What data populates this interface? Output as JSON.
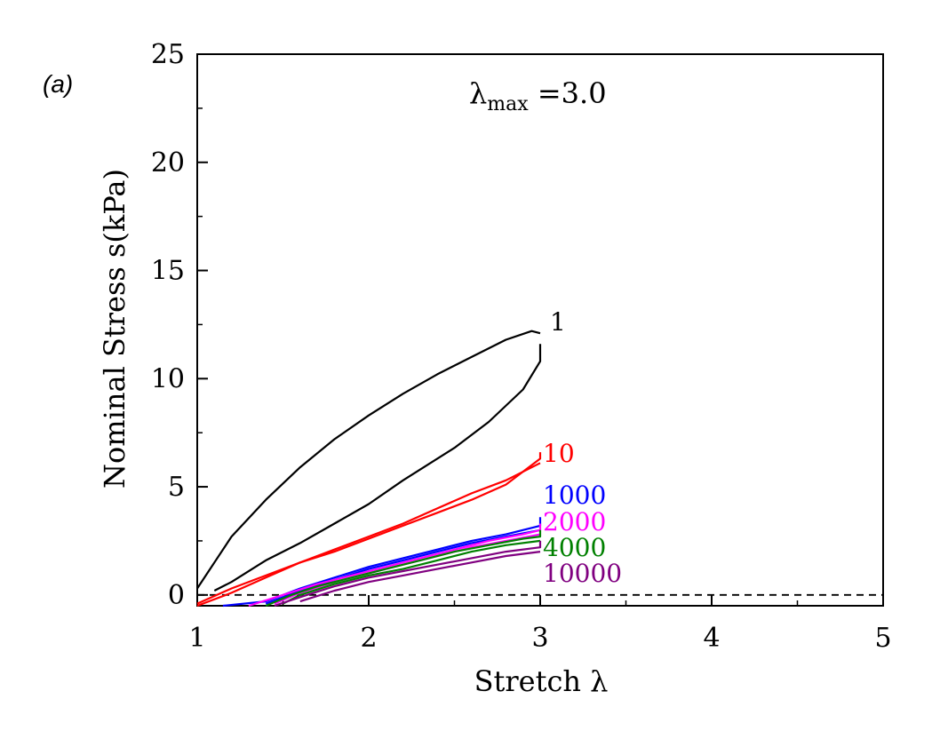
{
  "panel_label": "(a)",
  "chart_data": {
    "type": "line",
    "xlabel": "Stretch λ",
    "ylabel": "Nominal Stress s(kPa)",
    "xlim": [
      1,
      5
    ],
    "ylim": [
      -0.5,
      25
    ],
    "xticks": [
      "1",
      "2",
      "3",
      "4",
      "5"
    ],
    "yticks": [
      "0",
      "5",
      "10",
      "15",
      "20",
      "25"
    ],
    "annotation": {
      "symbol": "λ",
      "subscript": "max",
      "text": " =3.0"
    },
    "reference_line": {
      "y": 0,
      "style": "dashed"
    },
    "series": [
      {
        "name": "1",
        "color": "#000000",
        "loading": [
          [
            1.0,
            0.3
          ],
          [
            1.1,
            1.5
          ],
          [
            1.2,
            2.7
          ],
          [
            1.4,
            4.4
          ],
          [
            1.6,
            5.9
          ],
          [
            1.8,
            7.2
          ],
          [
            2.0,
            8.3
          ],
          [
            2.2,
            9.3
          ],
          [
            2.4,
            10.2
          ],
          [
            2.6,
            11.0
          ],
          [
            2.8,
            11.8
          ],
          [
            2.95,
            12.2
          ],
          [
            3.0,
            12.1
          ]
        ],
        "unloading": [
          [
            3.0,
            11.6
          ],
          [
            3.0,
            10.8
          ],
          [
            2.9,
            9.5
          ],
          [
            2.7,
            8.0
          ],
          [
            2.5,
            6.8
          ],
          [
            2.2,
            5.3
          ],
          [
            2.0,
            4.2
          ],
          [
            1.8,
            3.3
          ],
          [
            1.6,
            2.4
          ],
          [
            1.4,
            1.6
          ],
          [
            1.2,
            0.6
          ],
          [
            1.1,
            0.2
          ]
        ]
      },
      {
        "name": "10",
        "color": "#ff0000",
        "loading": [
          [
            1.0,
            -0.4
          ],
          [
            1.2,
            0.3
          ],
          [
            1.4,
            0.9
          ],
          [
            1.6,
            1.5
          ],
          [
            1.8,
            2.0
          ],
          [
            2.0,
            2.6
          ],
          [
            2.2,
            3.2
          ],
          [
            2.4,
            3.8
          ],
          [
            2.6,
            4.4
          ],
          [
            2.8,
            5.1
          ],
          [
            3.0,
            6.3
          ],
          [
            3.0,
            6.6
          ]
        ],
        "unloading": [
          [
            3.0,
            6.1
          ],
          [
            2.8,
            5.3
          ],
          [
            2.6,
            4.7
          ],
          [
            2.4,
            4.0
          ],
          [
            2.2,
            3.3
          ],
          [
            2.0,
            2.7
          ],
          [
            1.8,
            2.1
          ],
          [
            1.6,
            1.5
          ],
          [
            1.4,
            0.8
          ],
          [
            1.2,
            0.1
          ],
          [
            1.0,
            -0.5
          ]
        ]
      },
      {
        "name": "1000",
        "color": "#0000ff",
        "loading": [
          [
            1.15,
            -0.5
          ],
          [
            1.4,
            -0.3
          ],
          [
            1.6,
            0.3
          ],
          [
            1.8,
            0.8
          ],
          [
            2.0,
            1.3
          ],
          [
            2.2,
            1.7
          ],
          [
            2.4,
            2.1
          ],
          [
            2.6,
            2.5
          ],
          [
            2.8,
            2.8
          ],
          [
            3.0,
            3.2
          ],
          [
            3.0,
            3.6
          ]
        ],
        "unloading": [
          [
            3.0,
            3.0
          ],
          [
            2.8,
            2.7
          ],
          [
            2.6,
            2.4
          ],
          [
            2.4,
            2.0
          ],
          [
            2.2,
            1.6
          ],
          [
            2.0,
            1.2
          ],
          [
            1.8,
            0.7
          ],
          [
            1.6,
            0.2
          ],
          [
            1.4,
            -0.4
          ]
        ]
      },
      {
        "name": "2000",
        "color": "#ff00ff",
        "loading": [
          [
            1.3,
            -0.5
          ],
          [
            1.5,
            0.0
          ],
          [
            1.7,
            0.5
          ],
          [
            1.9,
            0.9
          ],
          [
            2.1,
            1.3
          ],
          [
            2.3,
            1.7
          ],
          [
            2.5,
            2.1
          ],
          [
            2.7,
            2.5
          ],
          [
            2.9,
            2.8
          ],
          [
            3.0,
            3.0
          ],
          [
            3.0,
            3.3
          ]
        ],
        "unloading": [
          [
            3.0,
            2.8
          ],
          [
            2.8,
            2.5
          ],
          [
            2.6,
            2.2
          ],
          [
            2.4,
            1.8
          ],
          [
            2.2,
            1.4
          ],
          [
            2.0,
            1.0
          ],
          [
            1.8,
            0.6
          ],
          [
            1.6,
            0.1
          ],
          [
            1.45,
            -0.4
          ]
        ]
      },
      {
        "name": "4000",
        "color": "#008000",
        "loading": [
          [
            1.4,
            -0.5
          ],
          [
            1.55,
            0.0
          ],
          [
            1.7,
            0.4
          ],
          [
            1.9,
            0.8
          ],
          [
            2.1,
            1.2
          ],
          [
            2.3,
            1.6
          ],
          [
            2.5,
            2.0
          ],
          [
            2.7,
            2.3
          ],
          [
            2.9,
            2.6
          ],
          [
            3.0,
            2.7
          ],
          [
            3.0,
            3.0
          ]
        ],
        "unloading": [
          [
            3.0,
            2.5
          ],
          [
            2.8,
            2.3
          ],
          [
            2.6,
            2.0
          ],
          [
            2.4,
            1.6
          ],
          [
            2.2,
            1.2
          ],
          [
            2.0,
            0.9
          ],
          [
            1.8,
            0.5
          ],
          [
            1.6,
            0.0
          ],
          [
            1.5,
            -0.4
          ]
        ]
      },
      {
        "name": "10000",
        "color": "#800080",
        "loading": [
          [
            1.45,
            -0.5
          ],
          [
            1.6,
            -0.1
          ],
          [
            1.8,
            0.4
          ],
          [
            2.0,
            0.8
          ],
          [
            2.2,
            1.1
          ],
          [
            2.4,
            1.4
          ],
          [
            2.6,
            1.7
          ],
          [
            2.8,
            2.0
          ],
          [
            3.0,
            2.2
          ],
          [
            3.0,
            2.5
          ]
        ],
        "unloading": [
          [
            3.0,
            2.0
          ],
          [
            2.8,
            1.8
          ],
          [
            2.6,
            1.5
          ],
          [
            2.4,
            1.2
          ],
          [
            2.2,
            0.9
          ],
          [
            2.0,
            0.6
          ],
          [
            1.8,
            0.2
          ],
          [
            1.6,
            -0.3
          ]
        ]
      }
    ]
  }
}
